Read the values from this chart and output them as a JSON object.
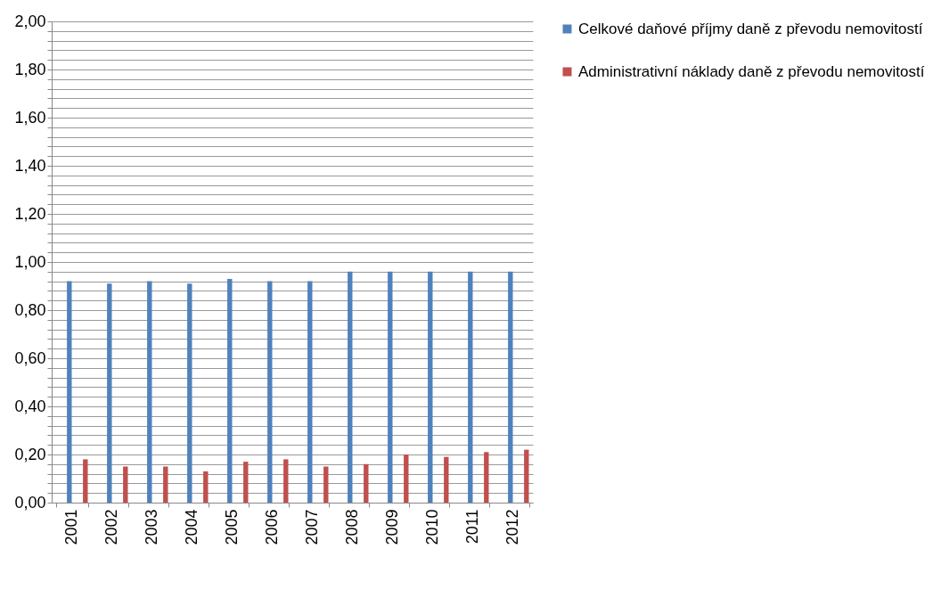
{
  "chart_data": {
    "type": "bar",
    "categories": [
      "2001",
      "2002",
      "2003",
      "2004",
      "2005",
      "2006",
      "2007",
      "2008",
      "2009",
      "2010",
      "2011",
      "2012"
    ],
    "series": [
      {
        "name": "Celkové daňové příjmy daně z převodu nemovitostí",
        "color": "#4f81bd",
        "values": [
          0.92,
          0.91,
          0.92,
          0.91,
          0.93,
          0.92,
          0.92,
          0.96,
          0.96,
          0.96,
          0.96,
          0.96
        ]
      },
      {
        "name": "Administrativní náklady daně z převodu nemovitostí",
        "color": "#c0504d",
        "values": [
          0.18,
          0.15,
          0.15,
          0.13,
          0.17,
          0.18,
          0.15,
          0.16,
          0.2,
          0.19,
          0.21,
          0.22
        ]
      }
    ],
    "ylim": [
      0,
      2
    ],
    "yticks": [
      {
        "value": 0,
        "label": "0,00"
      },
      {
        "value": 0.04,
        "label": null
      },
      {
        "value": 0.08,
        "label": null
      },
      {
        "value": 0.12,
        "label": null
      },
      {
        "value": 0.16,
        "label": null
      },
      {
        "value": 0.2,
        "label": "0,20"
      },
      {
        "value": 0.24,
        "label": null
      },
      {
        "value": 0.28,
        "label": null
      },
      {
        "value": 0.32,
        "label": null
      },
      {
        "value": 0.36,
        "label": null
      },
      {
        "value": 0.4,
        "label": "0,40"
      },
      {
        "value": 0.44,
        "label": null
      },
      {
        "value": 0.48,
        "label": null
      },
      {
        "value": 0.52,
        "label": null
      },
      {
        "value": 0.56,
        "label": null
      },
      {
        "value": 0.6,
        "label": "0,60"
      },
      {
        "value": 0.64,
        "label": null
      },
      {
        "value": 0.68,
        "label": null
      },
      {
        "value": 0.72,
        "label": null
      },
      {
        "value": 0.76,
        "label": null
      },
      {
        "value": 0.8,
        "label": "0,80"
      },
      {
        "value": 0.84,
        "label": null
      },
      {
        "value": 0.88,
        "label": null
      },
      {
        "value": 0.92,
        "label": null
      },
      {
        "value": 0.96,
        "label": null
      },
      {
        "value": 1,
        "label": "1,00"
      },
      {
        "value": 1.04,
        "label": null
      },
      {
        "value": 1.08,
        "label": null
      },
      {
        "value": 1.12,
        "label": null
      },
      {
        "value": 1.16,
        "label": null
      },
      {
        "value": 1.2,
        "label": "1,20"
      },
      {
        "value": 1.24,
        "label": null
      },
      {
        "value": 1.28,
        "label": null
      },
      {
        "value": 1.32,
        "label": null
      },
      {
        "value": 1.36,
        "label": null
      },
      {
        "value": 1.4,
        "label": "1,40"
      },
      {
        "value": 1.44,
        "label": null
      },
      {
        "value": 1.48,
        "label": null
      },
      {
        "value": 1.52,
        "label": null
      },
      {
        "value": 1.56,
        "label": null
      },
      {
        "value": 1.6,
        "label": "1,60"
      },
      {
        "value": 1.64,
        "label": null
      },
      {
        "value": 1.68,
        "label": null
      },
      {
        "value": 1.72,
        "label": null
      },
      {
        "value": 1.76,
        "label": null
      },
      {
        "value": 1.8,
        "label": "1,80"
      },
      {
        "value": 1.84,
        "label": null
      },
      {
        "value": 1.88,
        "label": null
      },
      {
        "value": 1.92,
        "label": null
      },
      {
        "value": 1.96,
        "label": null
      },
      {
        "value": 2,
        "label": "2,00"
      }
    ],
    "grid": true,
    "legend": "right"
  }
}
